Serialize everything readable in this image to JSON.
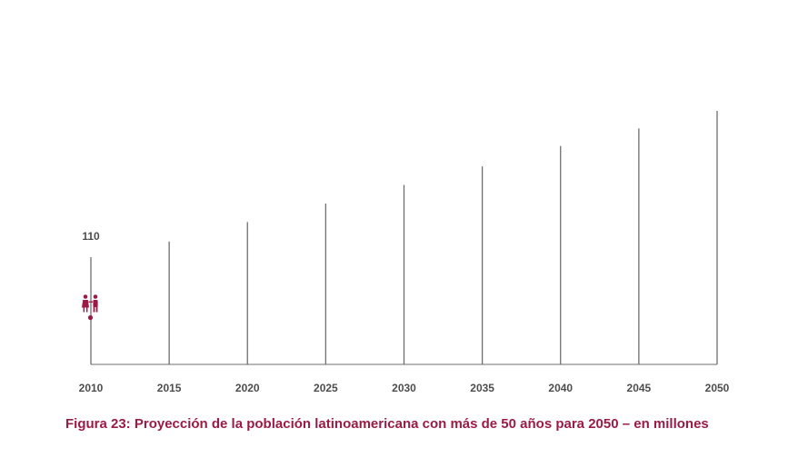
{
  "chart_data": {
    "type": "bar",
    "categories": [
      "2010",
      "2015",
      "2020",
      "2025",
      "2030",
      "2035",
      "2040",
      "2045",
      "2050"
    ],
    "values": [
      110,
      126,
      146,
      165,
      184,
      203,
      224,
      242,
      260
    ],
    "value_labels": [
      "110",
      "",
      "",
      "",
      "",
      "",
      "",
      "",
      ""
    ],
    "ylim": [
      0,
      260
    ],
    "grid": false,
    "legend": "none",
    "bar_style": "thin vertical line",
    "marker_icon": "people-icon",
    "colors": {
      "bar": "#6e6e6e",
      "axis": "#6e6e6e",
      "accent": "#9b1b45",
      "text": "#4d4d4d"
    }
  },
  "caption": "Figura 23: Proyección de la población latinoamericana con más de 50 años para 2050 – en millones"
}
